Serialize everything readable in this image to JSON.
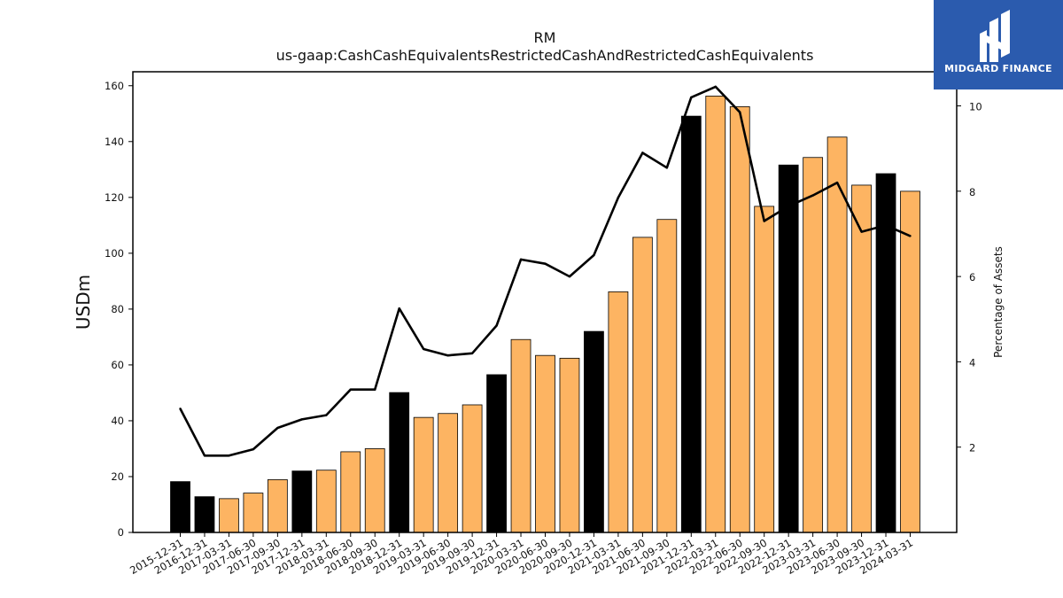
{
  "chart_data": {
    "type": "bar",
    "title": "RM",
    "subtitle": "us-gaap:CashCashEquivalentsRestrictedCashAndRestrictedCashEquivalents",
    "ylabel": "USDm",
    "y2label": "Percentage of Assets",
    "ylim": [
      0,
      165
    ],
    "y2lim": [
      0.0,
      10.8
    ],
    "yticks": [
      0,
      20,
      40,
      60,
      80,
      100,
      120,
      140,
      160
    ],
    "y2ticks": [
      2,
      4,
      6,
      8,
      10
    ],
    "grid": false,
    "categories": [
      "2015-12-31",
      "2016-12-31",
      "2017-03-31",
      "2017-06-30",
      "2017-09-30",
      "2017-12-31",
      "2018-03-31",
      "2018-06-30",
      "2018-09-30",
      "2018-12-31",
      "2019-03-31",
      "2019-06-30",
      "2019-09-30",
      "2019-12-31",
      "2020-03-31",
      "2020-06-30",
      "2020-09-30",
      "2020-12-31",
      "2021-03-31",
      "2021-06-30",
      "2021-09-30",
      "2021-12-31",
      "2022-03-31",
      "2022-06-30",
      "2022-09-30",
      "2022-12-31",
      "2023-03-31",
      "2023-06-30",
      "2023-09-30",
      "2023-12-31",
      "2024-03-31"
    ],
    "series": [
      {
        "kind": "bar",
        "values": [
          18.2,
          12.8,
          12.1,
          14.1,
          18.9,
          22.0,
          22.3,
          28.9,
          30.0,
          50.1,
          41.2,
          42.6,
          45.7,
          56.5,
          69.1,
          63.4,
          62.4,
          72.0,
          86.2,
          105.7,
          112.1,
          149.1,
          156.3,
          152.5,
          116.8,
          131.6,
          134.3,
          141.6,
          124.4,
          128.5,
          122.2
        ]
      },
      {
        "kind": "line",
        "axis": "right",
        "values": [
          2.9,
          1.8,
          1.8,
          1.95,
          2.45,
          2.65,
          2.75,
          3.35,
          3.35,
          5.25,
          4.3,
          4.15,
          4.2,
          4.85,
          6.4,
          6.3,
          6.0,
          6.5,
          7.85,
          8.9,
          8.55,
          10.2,
          10.45,
          9.85,
          7.3,
          7.65,
          7.9,
          8.2,
          7.05,
          7.2,
          6.95
        ]
      }
    ],
    "colors": {
      "annual": "#000000",
      "quarterly": "#fdb462",
      "line": "#000000"
    },
    "annual_categories": [
      "2015-12-31",
      "2016-12-31",
      "2017-12-31",
      "2018-12-31",
      "2019-12-31",
      "2020-12-31",
      "2021-12-31",
      "2022-12-31",
      "2023-12-31"
    ]
  },
  "logo": {
    "text": "MIDGARD FINANCE",
    "color": "#2b5bae"
  }
}
